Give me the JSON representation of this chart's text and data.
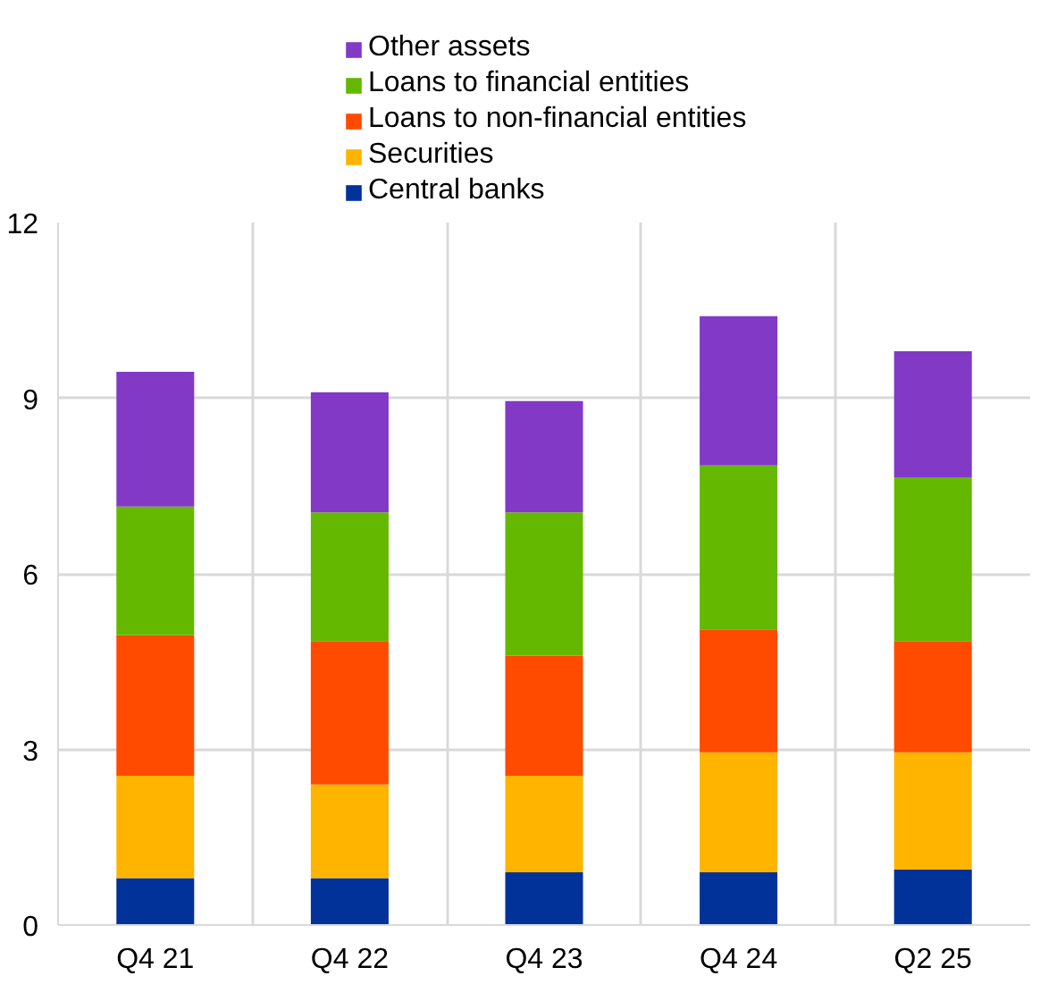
{
  "chart_data": {
    "type": "bar",
    "stacked": true,
    "categories": [
      "Q4 21",
      "Q4 22",
      "Q4 23",
      "Q4 24",
      "Q2 25"
    ],
    "series": [
      {
        "name": "Central banks",
        "color": "#003299",
        "values": [
          0.8,
          0.8,
          0.9,
          0.9,
          0.95
        ]
      },
      {
        "name": "Securities",
        "color": "#ffb400",
        "values": [
          1.75,
          1.6,
          1.65,
          2.05,
          2.0
        ]
      },
      {
        "name": "Loans to non-financial entities",
        "color": "#ff4b00",
        "values": [
          2.4,
          2.45,
          2.05,
          2.1,
          1.9
        ]
      },
      {
        "name": "Loans to financial entities",
        "color": "#65b800",
        "values": [
          2.2,
          2.2,
          2.45,
          2.8,
          2.8
        ]
      },
      {
        "name": "Other assets",
        "color": "#8139c6",
        "values": [
          2.3,
          2.05,
          1.9,
          2.55,
          2.15
        ]
      }
    ],
    "ylim": [
      0,
      12
    ],
    "yticks": [
      0,
      3,
      6,
      9,
      12
    ],
    "grid": true,
    "legend": "top"
  }
}
